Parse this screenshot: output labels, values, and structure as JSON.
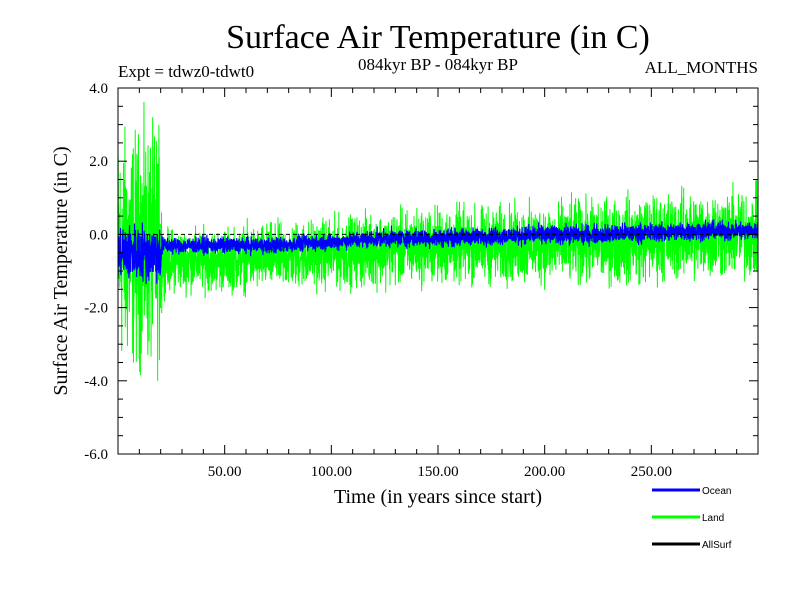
{
  "chart_data": {
    "type": "line",
    "title": "Surface Air Temperature (in C)",
    "subtitle_left": "Expt = tdwz0-tdwt0",
    "subtitle_center": "084kyr BP - 084kyr BP",
    "subtitle_right": "ALL_MONTHS",
    "xlabel": "Time (in years since start)",
    "ylabel": "Surface Air Temperature (in C)",
    "xlim": [
      0,
      300
    ],
    "ylim": [
      -6.0,
      4.0
    ],
    "x_ticks": [
      50,
      100,
      150,
      200,
      250
    ],
    "x_tick_labels": [
      "50.00",
      "100.00",
      "150.00",
      "200.00",
      "250.00"
    ],
    "y_ticks": [
      -6,
      -4,
      -2,
      0,
      2,
      4
    ],
    "y_tick_labels": [
      "-6.0",
      "-4.0",
      "-2.0",
      "0.0",
      "2.0",
      "4.0"
    ],
    "zero_line": 0.0,
    "legend_placement": "below-right",
    "series": [
      {
        "name": "Ocean",
        "color": "#0000ff",
        "x": [
          0,
          5,
          10,
          15,
          20,
          21,
          25,
          30,
          40,
          50,
          60,
          75,
          100,
          125,
          150,
          175,
          200,
          225,
          250,
          275,
          300
        ],
        "mean": [
          -0.5,
          -0.5,
          -0.5,
          -0.5,
          -0.5,
          -0.3,
          -0.3,
          -0.3,
          -0.3,
          -0.3,
          -0.3,
          -0.3,
          -0.2,
          -0.1,
          -0.1,
          -0.05,
          0.0,
          0.0,
          0.05,
          0.1,
          0.1
        ],
        "spread": [
          0.8,
          0.8,
          0.8,
          0.8,
          0.8,
          0.22,
          0.22,
          0.22,
          0.22,
          0.22,
          0.22,
          0.22,
          0.22,
          0.24,
          0.24,
          0.24,
          0.26,
          0.26,
          0.26,
          0.26,
          0.26
        ]
      },
      {
        "name": "Land",
        "color": "#00ff00",
        "x": [
          0,
          5,
          10,
          15,
          20,
          21,
          25,
          30,
          40,
          50,
          60,
          75,
          100,
          125,
          150,
          175,
          200,
          225,
          250,
          275,
          300
        ],
        "mean": [
          -0.4,
          -0.4,
          -0.4,
          -0.4,
          -0.4,
          -0.7,
          -0.7,
          -0.7,
          -0.7,
          -0.7,
          -0.65,
          -0.6,
          -0.5,
          -0.4,
          -0.3,
          -0.3,
          -0.25,
          -0.2,
          -0.1,
          0.0,
          0.0
        ],
        "spread": [
          3.2,
          3.2,
          3.2,
          3.2,
          3.2,
          0.85,
          0.85,
          0.85,
          0.85,
          0.85,
          0.9,
          0.9,
          0.95,
          1.0,
          1.05,
          1.05,
          1.1,
          1.15,
          1.2,
          1.2,
          1.2
        ]
      },
      {
        "name": "AllSurf",
        "color": "#000000",
        "x": [
          0,
          300
        ],
        "mean": [
          0.0,
          0.0
        ],
        "spread": [
          0.0,
          0.0
        ]
      }
    ]
  }
}
